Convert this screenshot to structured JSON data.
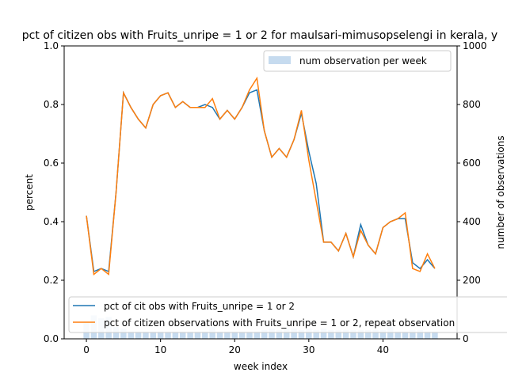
{
  "chart_data": {
    "type": "line",
    "title": "pct of citizen obs with Fruits_unripe = 1 or 2 for maulsari-mimusopselengi in kerala, y",
    "xlabel": "week index",
    "ylabel": "percent",
    "y2label": "number of observations",
    "xlim": [
      -3,
      50
    ],
    "ylim": [
      0,
      1.0
    ],
    "y2lim": [
      0,
      1000
    ],
    "xticks": [
      0,
      10,
      20,
      30,
      40
    ],
    "yticks": [
      0.0,
      0.2,
      0.4,
      0.6,
      0.8,
      1.0
    ],
    "yticklabels": [
      "0.0",
      "0.2",
      "0.4",
      "0.6",
      "0.8",
      "1.0"
    ],
    "y2ticks": [
      0,
      200,
      400,
      600,
      800,
      1000
    ],
    "x": [
      0,
      1,
      2,
      3,
      4,
      5,
      6,
      7,
      8,
      9,
      10,
      11,
      12,
      13,
      14,
      15,
      16,
      17,
      18,
      19,
      20,
      21,
      22,
      23,
      24,
      25,
      26,
      27,
      28,
      29,
      30,
      31,
      32,
      33,
      34,
      35,
      36,
      37,
      38,
      39,
      40,
      41,
      42,
      43,
      44,
      45,
      46,
      47
    ],
    "series": [
      {
        "name": "pct of cit obs with Fruits_unripe = 1 or 2",
        "color": "#1f77b4",
        "values": [
          0.42,
          0.23,
          0.24,
          0.23,
          0.5,
          0.84,
          0.79,
          0.75,
          0.72,
          0.8,
          0.83,
          0.84,
          0.79,
          0.81,
          0.79,
          0.79,
          0.8,
          0.79,
          0.75,
          0.78,
          0.75,
          0.79,
          0.84,
          0.85,
          0.71,
          0.62,
          0.65,
          0.62,
          0.68,
          0.77,
          0.64,
          0.53,
          0.33,
          0.33,
          0.3,
          0.36,
          0.28,
          0.39,
          0.32,
          0.29,
          0.38,
          0.4,
          0.41,
          0.41,
          0.26,
          0.24,
          0.27,
          0.24
        ]
      },
      {
        "name": "pct of citizen observations with Fruits_unripe = 1 or 2, repeat observation",
        "color": "#ff7f0e",
        "values": [
          0.42,
          0.22,
          0.24,
          0.22,
          0.5,
          0.84,
          0.79,
          0.75,
          0.72,
          0.8,
          0.83,
          0.84,
          0.79,
          0.81,
          0.79,
          0.79,
          0.79,
          0.82,
          0.75,
          0.78,
          0.75,
          0.79,
          0.85,
          0.89,
          0.71,
          0.62,
          0.65,
          0.62,
          0.68,
          0.78,
          0.61,
          0.47,
          0.33,
          0.33,
          0.3,
          0.36,
          0.28,
          0.37,
          0.32,
          0.29,
          0.38,
          0.4,
          0.41,
          0.43,
          0.24,
          0.23,
          0.29,
          0.24
        ]
      }
    ],
    "bars": {
      "name": "num observation per week",
      "color": "#c6dbef",
      "values": [
        60,
        80,
        70,
        75,
        40,
        35,
        25,
        25,
        25,
        25,
        25,
        25,
        25,
        25,
        25,
        25,
        25,
        40,
        25,
        25,
        25,
        25,
        25,
        25,
        30,
        35,
        30,
        35,
        35,
        30,
        35,
        30,
        35,
        30,
        30,
        30,
        30,
        30,
        30,
        30,
        30,
        40,
        25,
        25,
        30,
        30,
        25,
        25
      ]
    },
    "legend_bar_placement": "top-right",
    "legend_lines_placement": "lower-left"
  }
}
